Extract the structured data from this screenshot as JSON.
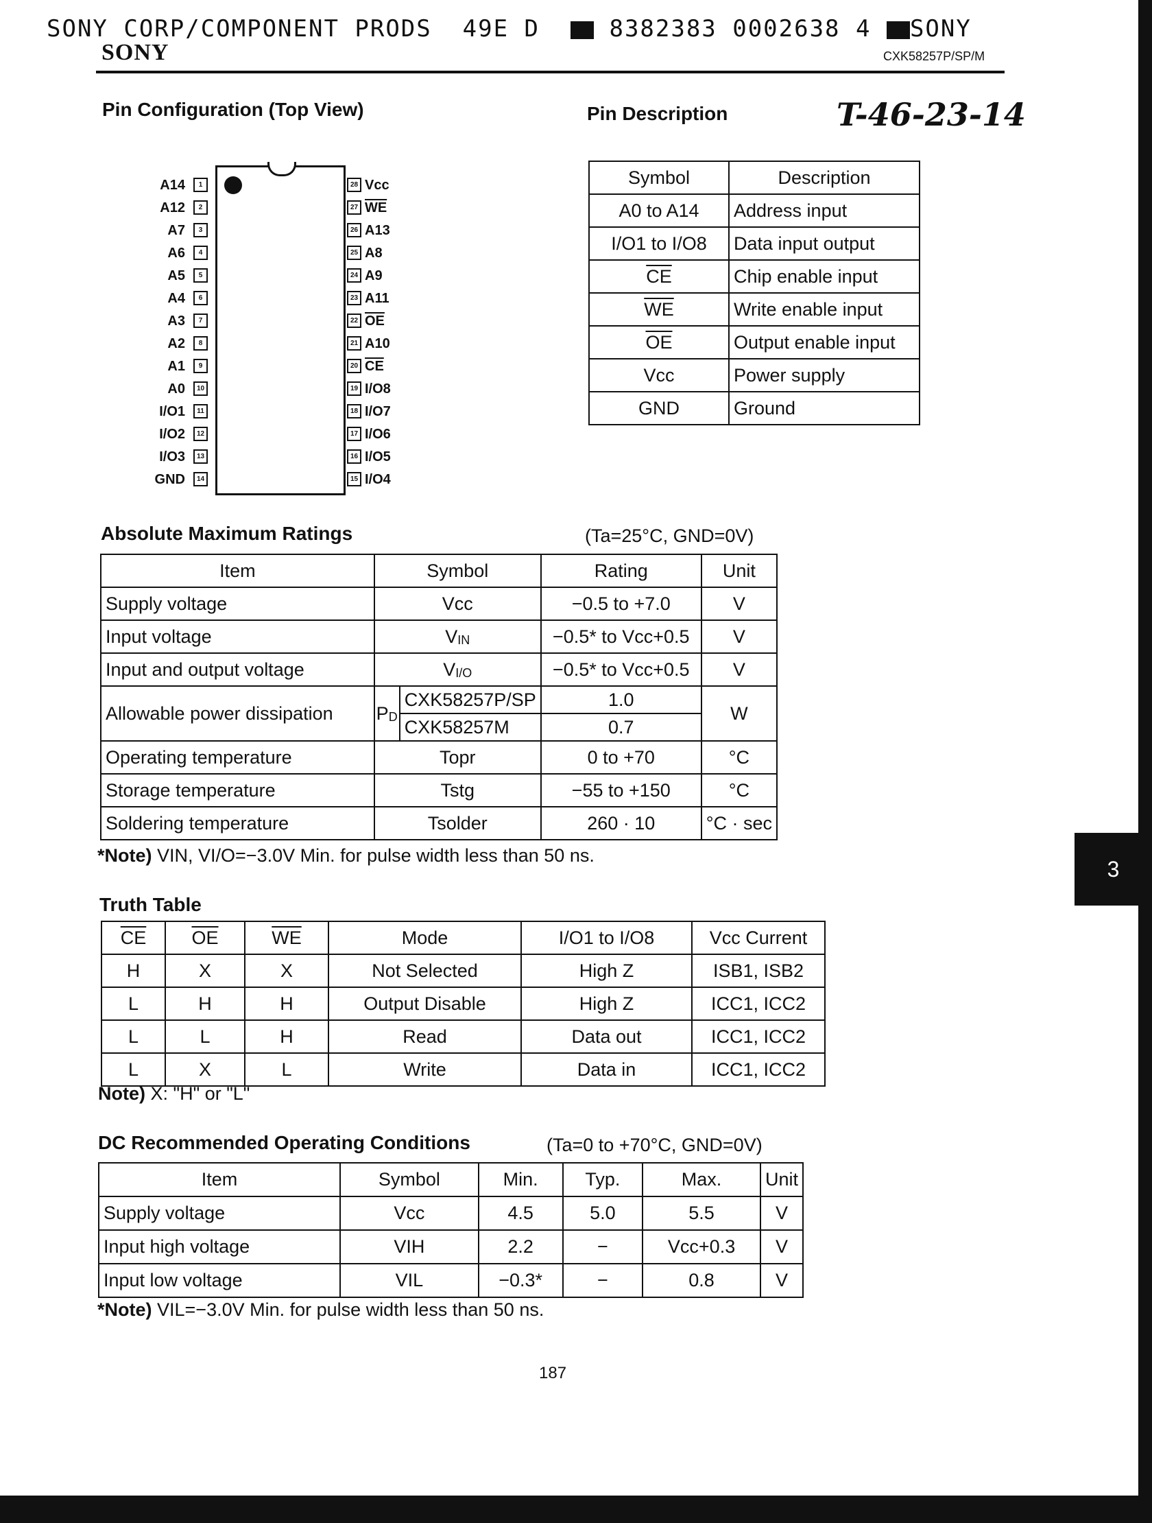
{
  "header": {
    "line_left": "SONY CORP/COMPONENT PRODS  49E D",
    "line_mid": "8382383 0002638 4",
    "line_right": "SONY",
    "logo": "SONY",
    "model": "CXK58257P/SP/M",
    "handwritten": "T-46-23-14"
  },
  "pin_config": {
    "title": "Pin Configuration (Top View)",
    "left": [
      {
        "n": "1",
        "l": "A14"
      },
      {
        "n": "2",
        "l": "A12"
      },
      {
        "n": "3",
        "l": "A7"
      },
      {
        "n": "4",
        "l": "A6"
      },
      {
        "n": "5",
        "l": "A5"
      },
      {
        "n": "6",
        "l": "A4"
      },
      {
        "n": "7",
        "l": "A3"
      },
      {
        "n": "8",
        "l": "A2"
      },
      {
        "n": "9",
        "l": "A1"
      },
      {
        "n": "10",
        "l": "A0"
      },
      {
        "n": "11",
        "l": "I/O1"
      },
      {
        "n": "12",
        "l": "I/O2"
      },
      {
        "n": "13",
        "l": "I/O3"
      },
      {
        "n": "14",
        "l": "GND"
      }
    ],
    "right": [
      {
        "n": "28",
        "l": "Vcc"
      },
      {
        "n": "27",
        "l": "WE",
        "ov": true
      },
      {
        "n": "26",
        "l": "A13"
      },
      {
        "n": "25",
        "l": "A8"
      },
      {
        "n": "24",
        "l": "A9"
      },
      {
        "n": "23",
        "l": "A11"
      },
      {
        "n": "22",
        "l": "OE",
        "ov": true
      },
      {
        "n": "21",
        "l": "A10"
      },
      {
        "n": "20",
        "l": "CE",
        "ov": true
      },
      {
        "n": "19",
        "l": "I/O8"
      },
      {
        "n": "18",
        "l": "I/O7"
      },
      {
        "n": "17",
        "l": "I/O6"
      },
      {
        "n": "16",
        "l": "I/O5"
      },
      {
        "n": "15",
        "l": "I/O4"
      }
    ]
  },
  "pin_description": {
    "title": "Pin Description",
    "headers": [
      "Symbol",
      "Description"
    ],
    "rows": [
      [
        "A0  to  A14",
        "Address input"
      ],
      [
        "I/O1  to  I/O8",
        "Data input output"
      ],
      [
        "CE",
        "Chip enable input",
        true
      ],
      [
        "WE",
        "Write enable input",
        true
      ],
      [
        "OE",
        "Output enable input",
        true
      ],
      [
        "Vcc",
        "Power supply"
      ],
      [
        "GND",
        "Ground"
      ]
    ]
  },
  "abs_max": {
    "title": "Absolute Maximum Ratings",
    "condition": "(Ta=25°C, GND=0V)",
    "headers": [
      "Item",
      "Symbol",
      "Rating",
      "Unit"
    ],
    "rows": [
      {
        "item": "Supply voltage",
        "sym": "Vcc",
        "rating": "−0.5  to  +7.0",
        "unit": "V"
      },
      {
        "item": "Input voltage",
        "sym": "V",
        "sub": "IN",
        "rating": "−0.5* to Vcc+0.5",
        "unit": "V"
      },
      {
        "item": "Input and output voltage",
        "sym": "V",
        "sub": "I/O",
        "rating": "−0.5* to Vcc+0.5",
        "unit": "V"
      }
    ],
    "pd": {
      "item": "Allowable power dissipation",
      "sym": "P",
      "sub": "D",
      "models": [
        "CXK58257P/SP",
        "CXK58257M"
      ],
      "ratings": [
        "1.0",
        "0.7"
      ],
      "unit": "W"
    },
    "rows2": [
      {
        "item": "Operating temperature",
        "sym": "Topr",
        "rating": "0  to  +70",
        "unit": "°C"
      },
      {
        "item": "Storage temperature",
        "sym": "Tstg",
        "rating": "−55  to  +150",
        "unit": "°C"
      },
      {
        "item": "Soldering temperature",
        "sym": "Tsolder",
        "rating": "260 · 10",
        "unit": "°C · sec"
      }
    ],
    "note_label": "*Note)",
    "note": "VIN, VI/O=−3.0V Min. for pulse width less than 50 ns."
  },
  "side_tab": "3",
  "truth_table": {
    "title": "Truth Table",
    "headers": [
      "CE",
      "OE",
      "WE",
      "Mode",
      "I/O1  to  I/O8",
      "Vcc Current"
    ],
    "rows": [
      [
        "H",
        "X",
        "X",
        "Not Selected",
        "High Z",
        "ISB1, ISB2"
      ],
      [
        "L",
        "H",
        "H",
        "Output Disable",
        "High Z",
        "ICC1, ICC2"
      ],
      [
        "L",
        "L",
        "H",
        "Read",
        "Data out",
        "ICC1, ICC2"
      ],
      [
        "L",
        "X",
        "L",
        "Write",
        "Data in",
        "ICC1, ICC2"
      ]
    ],
    "note_label": "Note)",
    "note": "X: \"H\" or \"L\""
  },
  "dc": {
    "title": "DC Recommended Operating Conditions",
    "condition": "(Ta=0 to +70°C, GND=0V)",
    "headers": [
      "Item",
      "Symbol",
      "Min.",
      "Typ.",
      "Max.",
      "Unit"
    ],
    "rows": [
      [
        "Supply voltage",
        "Vcc",
        "4.5",
        "5.0",
        "5.5",
        "V"
      ],
      [
        "Input high voltage",
        "VIH",
        "2.2",
        "−",
        "Vcc+0.3",
        "V"
      ],
      [
        "Input low voltage",
        "VIL",
        "−0.3*",
        "−",
        "0.8",
        "V"
      ]
    ],
    "note_label": "*Note)",
    "note": "VIL=−3.0V Min. for pulse width less than 50 ns."
  },
  "page_number": "187"
}
